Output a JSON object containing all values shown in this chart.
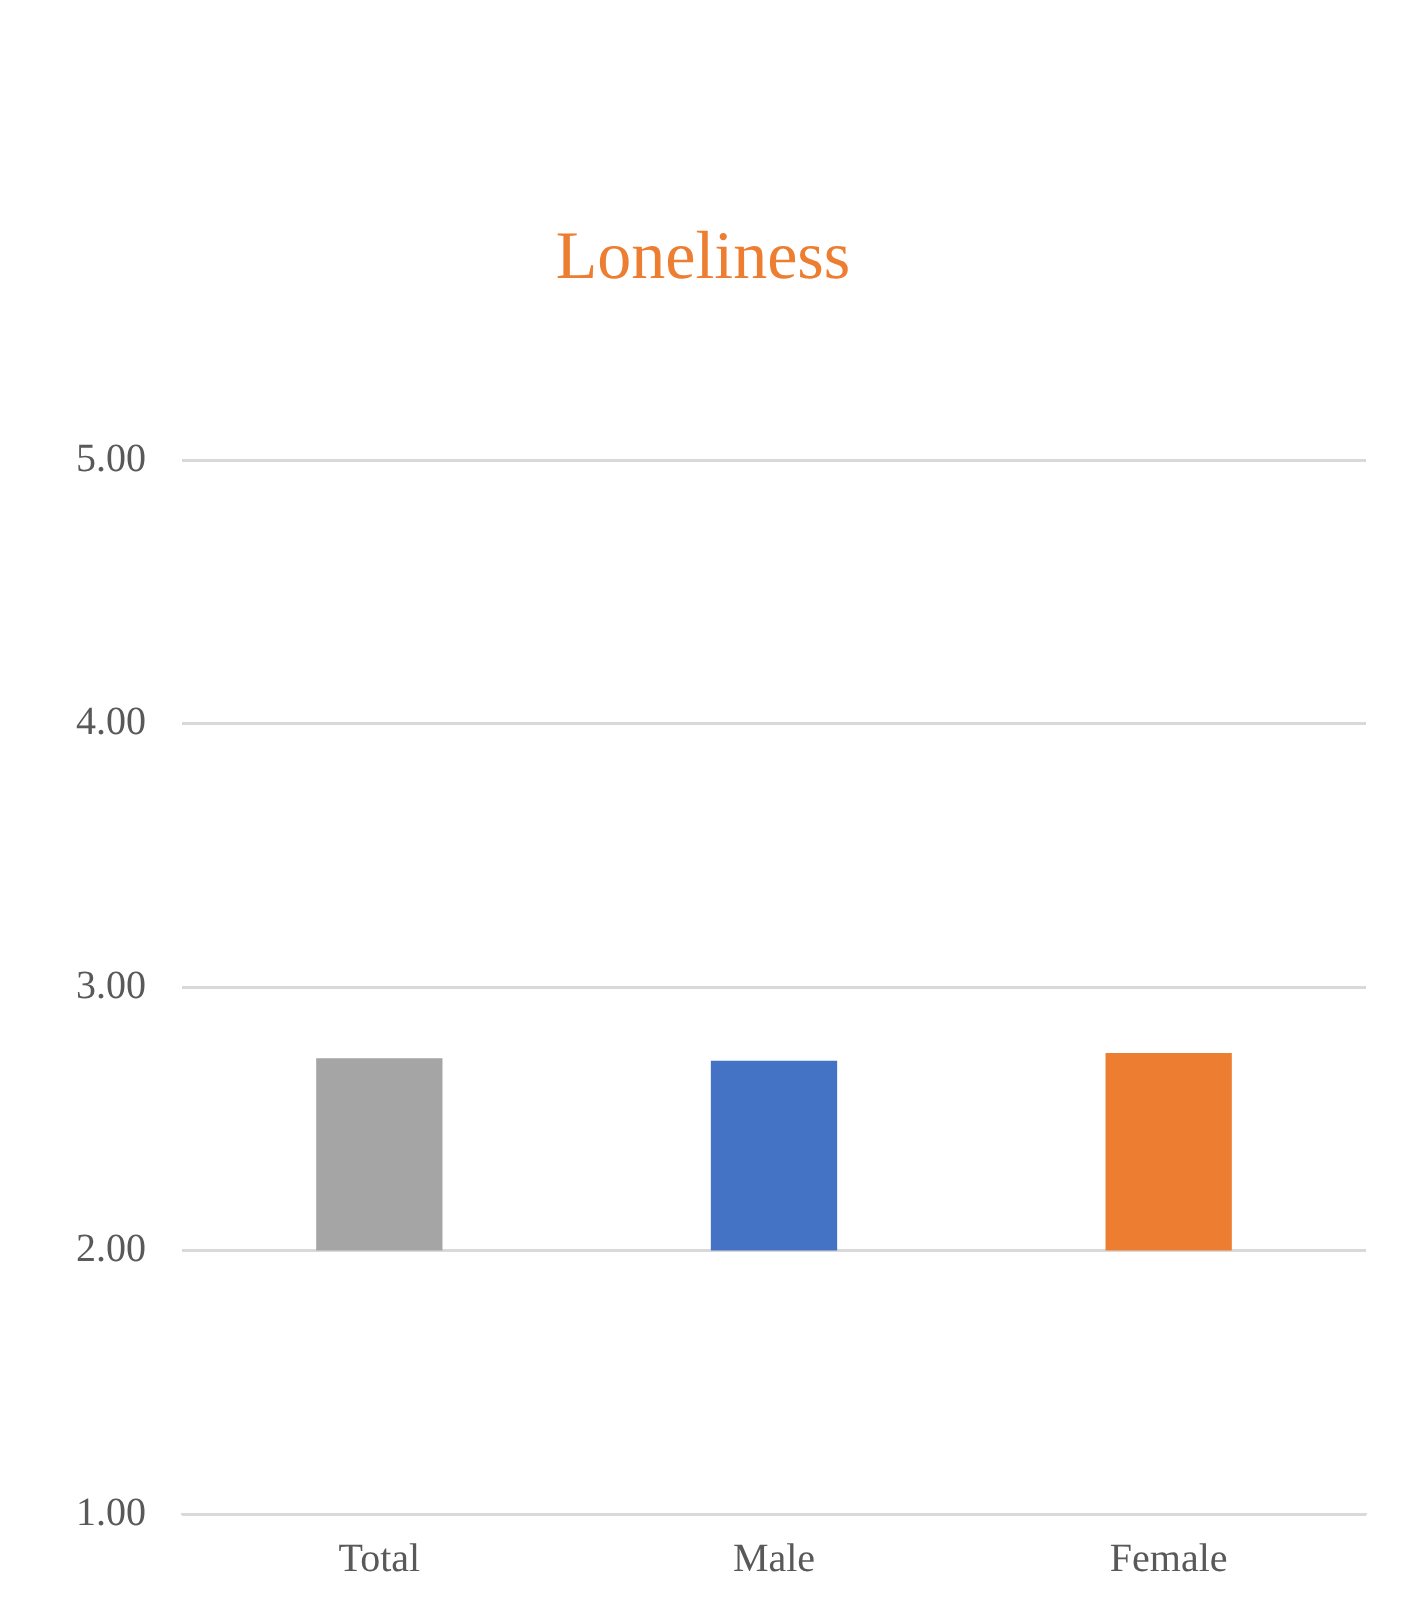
{
  "chart_data": {
    "type": "bar",
    "title": "Loneliness",
    "categories": [
      "Total",
      "Male",
      "Female"
    ],
    "values": [
      0.73,
      0.72,
      0.75
    ],
    "base": [
      2,
      2,
      2
    ],
    "colors": [
      "#a5a5a5",
      "#4472c4",
      "#ed7d31"
    ],
    "ylim": [
      1,
      5
    ],
    "yticks": [
      {
        "value": 1,
        "label": "1.00"
      },
      {
        "value": 2,
        "label": "2.00"
      },
      {
        "value": 3,
        "label": "3.00"
      },
      {
        "value": 4,
        "label": "4.00"
      },
      {
        "value": 5,
        "label": "5.00"
      }
    ],
    "grid": "y",
    "legend": false
  }
}
